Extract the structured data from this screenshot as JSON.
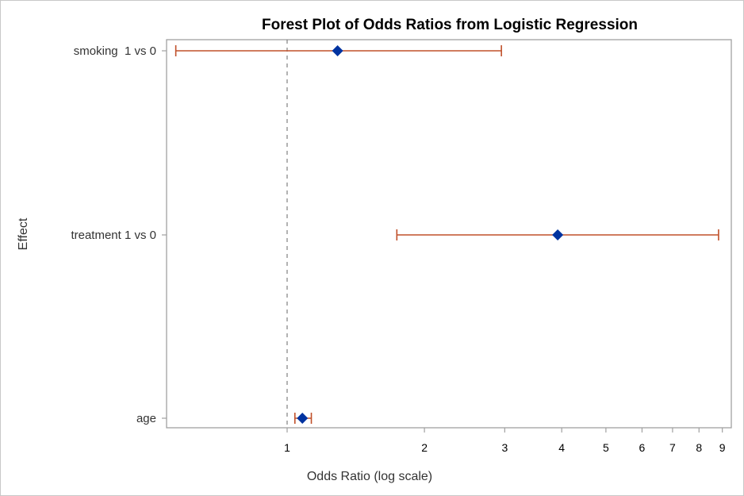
{
  "chart_data": {
    "type": "forest",
    "title": "Forest Plot of Odds Ratios from Logistic Regression",
    "xlabel": "Odds Ratio (log scale)",
    "ylabel": "Effect",
    "x_scale": "log",
    "xlim": [
      0.54,
      9.4
    ],
    "xticks": [
      1,
      2,
      3,
      4,
      5,
      6,
      7,
      8,
      9
    ],
    "reference_line": 1,
    "grid": false,
    "colors": {
      "point": "#0033a0",
      "ci": "#c0502a",
      "reference": "#808080"
    },
    "effects": [
      {
        "label": "smoking  1 vs 0",
        "or": 1.29,
        "lower": 0.57,
        "upper": 2.95
      },
      {
        "label": "treatment 1 vs 0",
        "or": 3.92,
        "lower": 1.74,
        "upper": 8.83
      },
      {
        "label": "age",
        "or": 1.08,
        "lower": 1.04,
        "upper": 1.13
      }
    ]
  }
}
